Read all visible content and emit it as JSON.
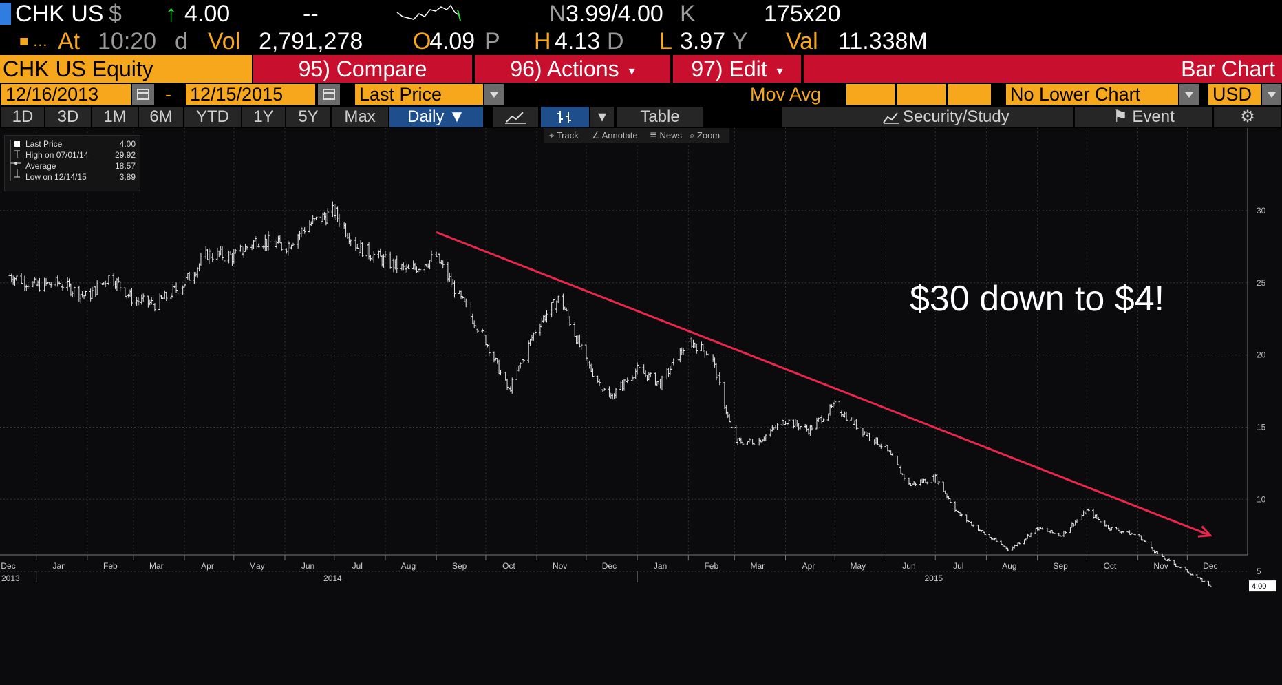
{
  "quote": {
    "ticker": "CHK US",
    "currency_symbol": "$",
    "last_price": "4.00",
    "change": "--",
    "bid_ask_prefix": "N",
    "bid_ask": "3.99/4.00",
    "bid_ask_suffix": "K",
    "size": "175x20",
    "at_label": "At",
    "time": "10:20",
    "time_suffix": "d",
    "vol_label": "Vol",
    "volume": "2,791,278",
    "open_label": "O",
    "open": "4.09",
    "open_suffix": "P",
    "high_label": "H",
    "high": "4.13",
    "high_suffix": "D",
    "low_label": "L",
    "low": "3.97",
    "low_suffix": "Y",
    "val_label": "Val",
    "value": "11.338M"
  },
  "toolbar": {
    "security": "CHK US Equity",
    "compare": "95) Compare",
    "actions": "96) Actions",
    "edit": "97) Edit",
    "chart_type": "Bar Chart"
  },
  "date_bar": {
    "start_date": "12/16/2013",
    "separator": "-",
    "end_date": "12/15/2015",
    "field": "Last Price",
    "mov_avg": "Mov Avg",
    "lower_chart": "No Lower Chart",
    "currency": "USD"
  },
  "period_tabs": [
    "1D",
    "3D",
    "1M",
    "6M",
    "YTD",
    "1Y",
    "5Y",
    "Max"
  ],
  "frequency": "Daily",
  "table_label": "Table",
  "collapse_label": "«",
  "security_study": "Security/Study",
  "event": "Event",
  "mini_toolbar": {
    "track": "Track",
    "annotate": "Annotate",
    "news": "News",
    "zoom": "Zoom"
  },
  "legend": [
    {
      "label": "Last Price",
      "value": "4.00"
    },
    {
      "label": "High on 07/01/14",
      "value": "29.92"
    },
    {
      "label": "Average",
      "value": "18.57"
    },
    {
      "label": "Low on 12/14/15",
      "value": "3.89"
    }
  ],
  "annotation_text": "$30 down to $4!",
  "colors": {
    "orange": "#f7a71b",
    "red_toolbar": "#c8102e",
    "trend_arrow": "#e8274b",
    "price_up": "#2fdc3a"
  },
  "chart_data": {
    "type": "line",
    "style": "bar (OHLC)",
    "title": "",
    "ylim": [
      0,
      33
    ],
    "yticks": [
      5,
      10,
      15,
      20,
      25,
      30
    ],
    "grid": true,
    "last_value_label": "4.00",
    "x_month_labels": [
      "Dec",
      "Jan",
      "Feb",
      "Mar",
      "Apr",
      "May",
      "Jun",
      "Jul",
      "Aug",
      "Sep",
      "Oct",
      "Nov",
      "Dec",
      "Jan",
      "Feb",
      "Mar",
      "Apr",
      "May",
      "Jun",
      "Jul",
      "Aug",
      "Sep",
      "Oct",
      "Nov",
      "Dec"
    ],
    "x_year_labels": [
      "2013",
      "2014",
      "2015"
    ],
    "series": [
      {
        "x": [
          "2013-12-16",
          "2014-01-01",
          "2014-01-15",
          "2014-02-01",
          "2014-02-15",
          "2014-03-01",
          "2014-03-15",
          "2014-04-01",
          "2014-04-15",
          "2014-05-01",
          "2014-05-15",
          "2014-06-01",
          "2014-06-15",
          "2014-07-01",
          "2014-07-15",
          "2014-08-01",
          "2014-08-15",
          "2014-09-01",
          "2014-09-15",
          "2014-10-01",
          "2014-10-15",
          "2014-11-01",
          "2014-11-15",
          "2014-12-01",
          "2014-12-15",
          "2015-01-01",
          "2015-01-15",
          "2015-02-01",
          "2015-02-15",
          "2015-03-01",
          "2015-03-15",
          "2015-04-01",
          "2015-04-15",
          "2015-05-01",
          "2015-05-15",
          "2015-06-01",
          "2015-06-15",
          "2015-07-01",
          "2015-07-15",
          "2015-08-01",
          "2015-08-15",
          "2015-09-01",
          "2015-09-15",
          "2015-10-01",
          "2015-10-15",
          "2015-11-01",
          "2015-11-15",
          "2015-12-01",
          "2015-12-15"
        ],
        "values": [
          25.5,
          24.8,
          25.0,
          24.0,
          25.5,
          23.8,
          23.5,
          25.0,
          27.0,
          26.8,
          28.0,
          27.5,
          29.0,
          29.92,
          27.5,
          26.5,
          25.8,
          26.8,
          24.0,
          21.0,
          17.5,
          22.0,
          24.0,
          19.5,
          17.0,
          19.0,
          18.0,
          21.0,
          20.0,
          14.0,
          14.0,
          15.5,
          14.8,
          16.5,
          15.0,
          13.5,
          11.0,
          11.5,
          9.0,
          7.5,
          6.5,
          8.0,
          7.5,
          9.2,
          8.0,
          7.5,
          6.0,
          5.0,
          4.0
        ]
      }
    ],
    "trendline": {
      "start": {
        "x": "2014-09-01",
        "y": 28.5
      },
      "end": {
        "x": "2015-12-15",
        "y": 7.5
      }
    }
  }
}
